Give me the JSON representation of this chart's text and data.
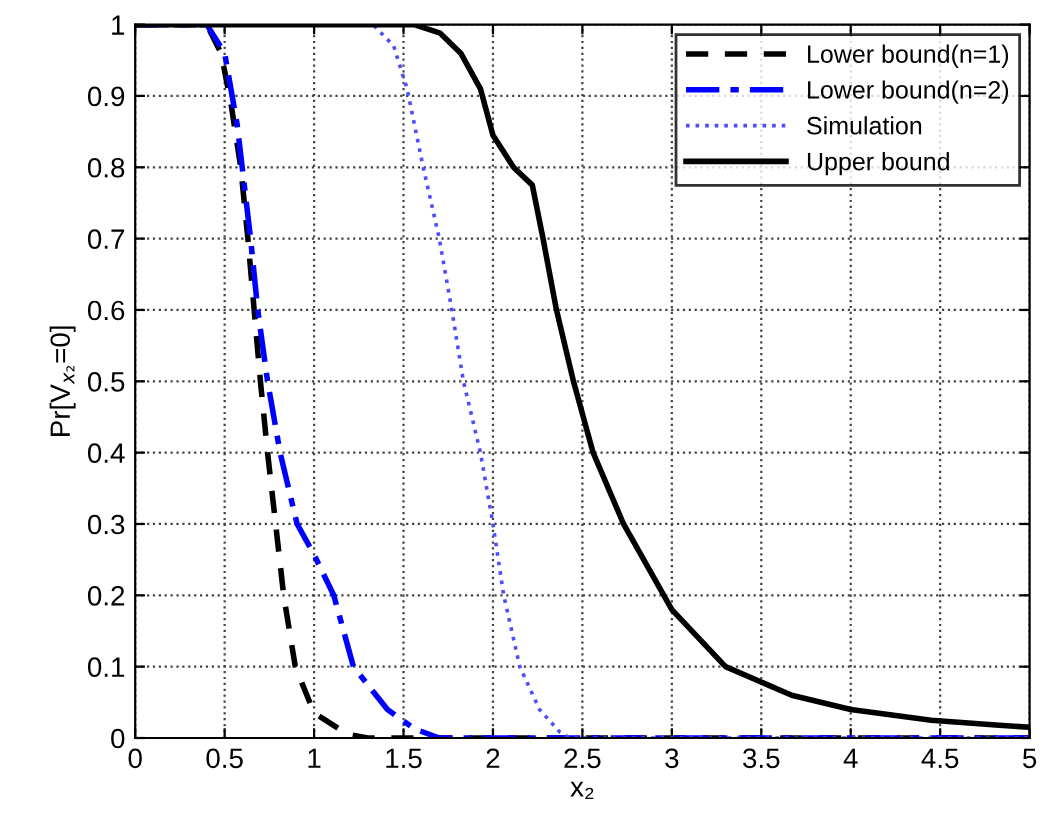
{
  "chart_data": {
    "type": "line",
    "xlabel": "x₂",
    "ylabel": "Pr[V$_{x₂}$=0]",
    "xlim": [
      0,
      5
    ],
    "ylim": [
      0,
      1
    ],
    "xticks": [
      0,
      0.5,
      1,
      1.5,
      2,
      2.5,
      3,
      3.5,
      4,
      4.5,
      5
    ],
    "yticks": [
      0,
      0.1,
      0.2,
      0.3,
      0.4,
      0.5,
      0.6,
      0.7,
      0.8,
      0.9,
      1
    ],
    "grid": true,
    "legend": "top right",
    "marker": "none",
    "series": [
      {
        "name": "Lower bound(n=1)",
        "color": "#000000",
        "line_style": "dashed",
        "x": [
          0,
          0.4,
          0.48,
          0.535,
          0.59,
          0.63,
          0.665,
          0.7,
          0.74,
          0.785,
          0.83,
          0.895,
          1.0,
          1.19,
          1.3,
          5
        ],
        "values": [
          1,
          1,
          0.96,
          0.89,
          0.8,
          0.7,
          0.6,
          0.5,
          0.4,
          0.3,
          0.2,
          0.1,
          0.035,
          0.005,
          0,
          0
        ]
      },
      {
        "name": "Lower bound(n=2)",
        "color": "#0000ff",
        "line_style": "dashdot",
        "x": [
          0,
          0.4,
          0.5,
          0.57,
          0.645,
          0.685,
          0.74,
          0.81,
          0.905,
          1.0,
          1.11,
          1.22,
          1.41,
          1.56,
          1.7,
          5
        ],
        "values": [
          1,
          1,
          0.96,
          0.86,
          0.7,
          0.6,
          0.5,
          0.4,
          0.3,
          0.257,
          0.2,
          0.1,
          0.04,
          0.013,
          0,
          0
        ]
      },
      {
        "name": "Simulation",
        "color": "#4d4dff",
        "line_style": "dotted",
        "x": [
          0,
          1.33,
          1.445,
          1.52,
          1.61,
          1.7,
          1.77,
          1.835,
          1.93,
          2.0,
          2.06,
          2.15,
          2.26,
          2.375,
          2.43,
          5
        ],
        "values": [
          1,
          1,
          0.97,
          0.91,
          0.8,
          0.7,
          0.6,
          0.5,
          0.4,
          0.3,
          0.2,
          0.1,
          0.04,
          0.008,
          0,
          0
        ]
      },
      {
        "name": "Upper bound",
        "color": "#000000",
        "line_style": "solid",
        "x": [
          0,
          1.56,
          1.705,
          1.82,
          1.93,
          2.0,
          2.115,
          2.22,
          2.28,
          2.355,
          2.45,
          2.56,
          2.73,
          3.0,
          3.3,
          3.67,
          4.0,
          4.45,
          4.83,
          5
        ],
        "values": [
          1,
          1,
          0.988,
          0.96,
          0.91,
          0.845,
          0.8,
          0.775,
          0.7,
          0.6,
          0.5,
          0.4,
          0.3,
          0.18,
          0.1,
          0.06,
          0.04,
          0.025,
          0.018,
          0.015
        ]
      }
    ]
  }
}
